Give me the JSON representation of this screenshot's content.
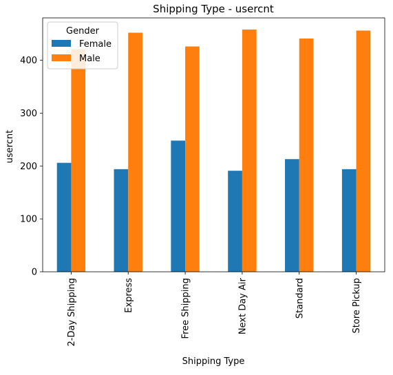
{
  "chart_data": {
    "type": "bar",
    "title": "Shipping Type - usercnt",
    "xlabel": "Shipping Type",
    "ylabel": "usercnt",
    "categories": [
      "2-Day Shipping",
      "Express",
      "Free Shipping",
      "Next Day Air",
      "Standard",
      "Store Pickup"
    ],
    "series": [
      {
        "name": "Female",
        "color": "#1f77b4",
        "values": [
          206,
          194,
          248,
          191,
          213,
          194
        ]
      },
      {
        "name": "Male",
        "color": "#ff7f0e",
        "values": [
          421,
          452,
          426,
          458,
          441,
          456
        ]
      }
    ],
    "ylim": [
      0,
      480
    ],
    "yticks": [
      0,
      100,
      200,
      300,
      400
    ],
    "legend": {
      "title": "Gender",
      "placement": "top-left"
    },
    "grid": false
  }
}
